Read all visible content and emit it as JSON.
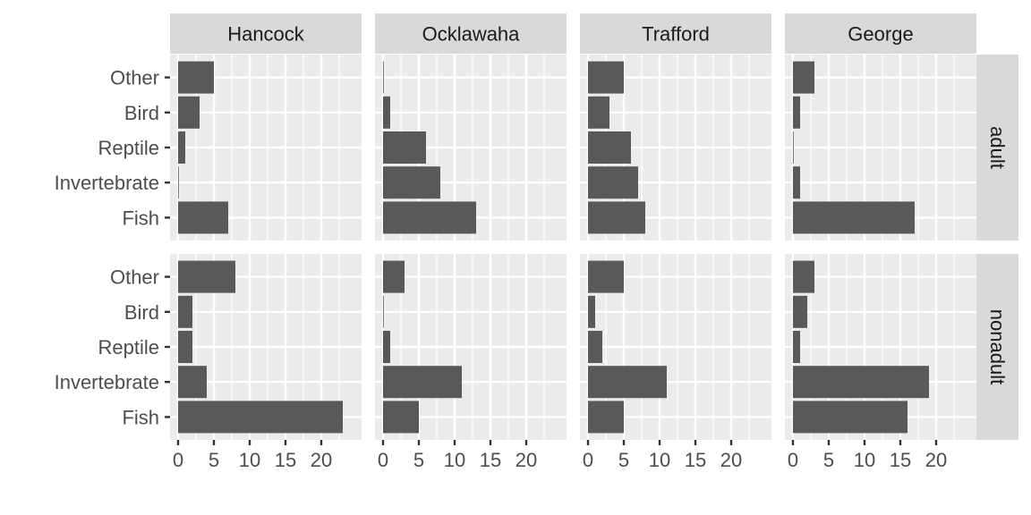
{
  "chart_data": {
    "type": "bar",
    "orientation": "horizontal",
    "facet_columns": [
      "Hancock",
      "Ocklawaha",
      "Trafford",
      "George"
    ],
    "facet_rows": [
      "adult",
      "nonadult"
    ],
    "categories": [
      "Fish",
      "Invertebrate",
      "Reptile",
      "Bird",
      "Other"
    ],
    "xlim": [
      0,
      24.5
    ],
    "xticks": [
      0,
      5,
      10,
      15,
      20
    ],
    "grid": true,
    "title": "",
    "xlabel": "",
    "ylabel": "",
    "colors": {
      "bar": "#595959",
      "panel_background": "#ebebeb",
      "grid": "#ffffff",
      "strip_background": "#d9d9d9",
      "axis_tick": "#333333"
    },
    "panels": [
      {
        "column": "Hancock",
        "row": "adult",
        "values": [
          7,
          0.1,
          1,
          3,
          5
        ]
      },
      {
        "column": "Ocklawaha",
        "row": "adult",
        "values": [
          13,
          8,
          6,
          1,
          0.1
        ]
      },
      {
        "column": "Trafford",
        "row": "adult",
        "values": [
          8,
          7,
          6,
          3,
          5
        ]
      },
      {
        "column": "George",
        "row": "adult",
        "values": [
          17,
          1,
          0.1,
          1,
          3
        ]
      },
      {
        "column": "Hancock",
        "row": "nonadult",
        "values": [
          23,
          4,
          2,
          2,
          8
        ]
      },
      {
        "column": "Ocklawaha",
        "row": "nonadult",
        "values": [
          5,
          11,
          1,
          0.1,
          3
        ]
      },
      {
        "column": "Trafford",
        "row": "nonadult",
        "values": [
          5,
          11,
          2,
          1,
          5
        ]
      },
      {
        "column": "George",
        "row": "nonadult",
        "values": [
          16,
          19,
          1,
          2,
          3
        ]
      }
    ]
  }
}
